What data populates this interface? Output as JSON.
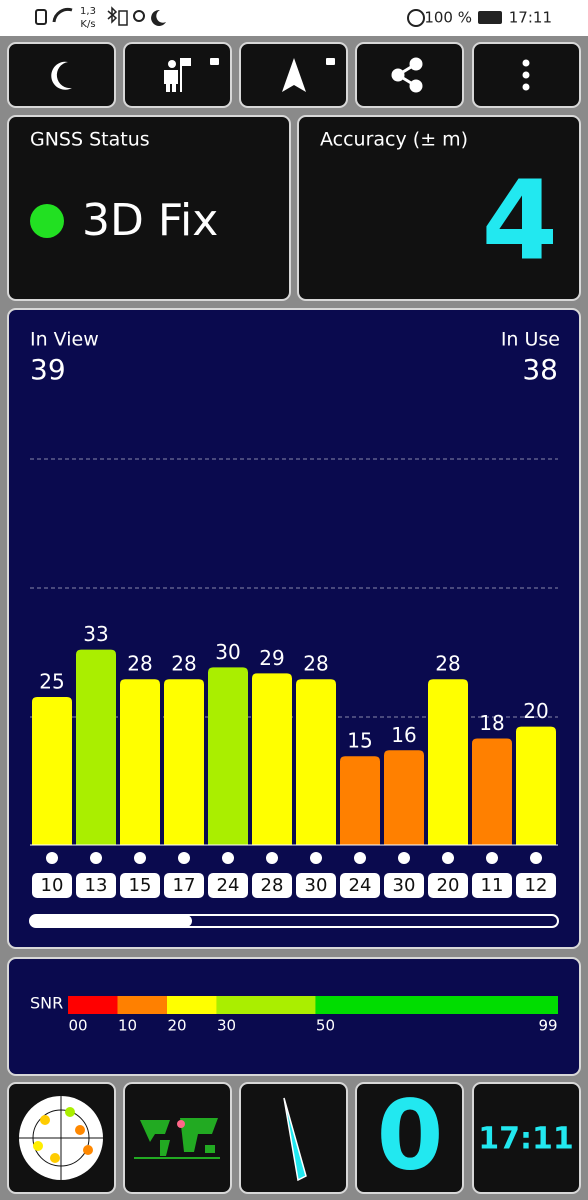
{
  "status_bar": {
    "speed_value": "1,3",
    "speed_unit": "K/s",
    "battery": "100 %",
    "time": "17:11"
  },
  "gnss_status": {
    "title": "GNSS Status",
    "value": "3D Fix"
  },
  "accuracy": {
    "title": "Accuracy (± m)",
    "value": 4
  },
  "satellites": {
    "in_view_label": "In View",
    "in_view": 39,
    "in_use_label": "In Use",
    "in_use": 38
  },
  "chart_data": {
    "type": "bar",
    "categories": [
      "10",
      "13",
      "15",
      "17",
      "24",
      "28",
      "30",
      "24",
      "30",
      "20",
      "11",
      "12"
    ],
    "values": [
      25,
      33,
      28,
      28,
      30,
      29,
      28,
      15,
      16,
      28,
      18,
      20
    ],
    "ylim": [
      0,
      50
    ],
    "snr_scale": {
      "label": "SNR",
      "ticks": [
        {
          "value": 0,
          "label": "00"
        },
        10,
        20,
        30,
        50,
        99
      ],
      "colors": [
        "#ff0000",
        "#ff8000",
        "#ffff00",
        "#aaee00",
        "#00dd00"
      ]
    }
  },
  "bottom_bar": {
    "speed": 0,
    "clock": "17:11"
  }
}
